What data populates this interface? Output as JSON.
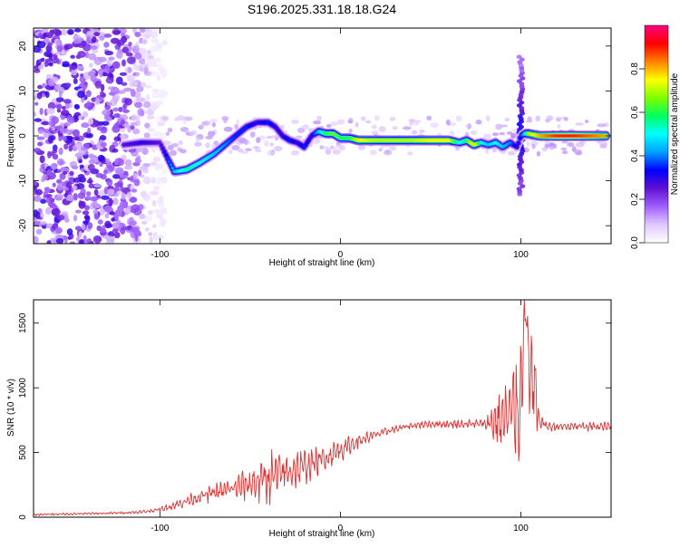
{
  "title": "S196.2025.331.18.18.G24",
  "colors": {
    "spectrogram_background": "#ffffff",
    "snr_line": "#e03030",
    "axis": "#000000"
  },
  "chart_data": [
    {
      "type": "heatmap",
      "title": "S196.2025.331.18.18.G24",
      "xlabel": "Height of straight line (km)",
      "ylabel": "Frequency (Hz)",
      "xlim": [
        -170,
        150
      ],
      "ylim": [
        -24,
        24
      ],
      "xticks": [
        -100,
        0,
        100
      ],
      "xtick_labels": [
        "-100",
        "0",
        "100"
      ],
      "yticks": [
        -20,
        -10,
        0,
        10,
        20
      ],
      "ytick_labels": [
        "-20",
        "-10",
        "0",
        "10",
        "20"
      ],
      "colorbar": {
        "label": "Normalized spectral amplitude",
        "range": [
          0,
          1
        ],
        "ticks": [
          0.0,
          0.2,
          0.4,
          0.6,
          0.8
        ],
        "tick_labels": [
          "0.0",
          "0.2",
          "0.4",
          "0.6",
          "0.8"
        ],
        "colormap": [
          "#ffffff",
          "#e0c8ff",
          "#a060ff",
          "#6010d0",
          "#0000ff",
          "#00a0ff",
          "#00ffff",
          "#00ff60",
          "#80ff00",
          "#ffff00",
          "#ff8000",
          "#ff0000",
          "#ff0080"
        ]
      },
      "noise_region_x": [
        -170,
        -97
      ],
      "ridge": {
        "x": [
          -120,
          -110,
          -100,
          -92,
          -85,
          -78,
          -70,
          -64,
          -58,
          -52,
          -46,
          -40,
          -36,
          -32,
          -28,
          -24,
          -20,
          -16,
          -12,
          -8,
          -4,
          0,
          5,
          10,
          20,
          30,
          40,
          50,
          60,
          66,
          70,
          74,
          78,
          82,
          86,
          90,
          94,
          98,
          100,
          102,
          104,
          110,
          120,
          130,
          140,
          148
        ],
        "frequency": [
          -2,
          -1.5,
          -1.5,
          -8,
          -7.5,
          -6,
          -4,
          -2,
          0,
          2,
          3,
          3,
          2,
          0,
          -1,
          -1.5,
          -2.5,
          0,
          1,
          0.5,
          0.5,
          -0.5,
          -0.5,
          -1,
          -1,
          -1,
          -1,
          -1,
          -1,
          -1.5,
          -1,
          -2,
          -1.5,
          -2,
          -1.5,
          -2.5,
          -1.5,
          -2.5,
          0,
          0.5,
          0.5,
          0,
          0,
          0,
          0,
          0
        ],
        "amplitude": [
          0.25,
          0.3,
          0.25,
          0.45,
          0.55,
          0.5,
          0.45,
          0.4,
          0.35,
          0.35,
          0.3,
          0.35,
          0.3,
          0.3,
          0.35,
          0.3,
          0.35,
          0.3,
          0.45,
          0.6,
          0.65,
          0.6,
          0.6,
          0.75,
          0.7,
          0.7,
          0.7,
          0.75,
          0.75,
          0.5,
          0.6,
          0.8,
          0.5,
          0.45,
          0.5,
          0.45,
          0.4,
          0.3,
          0.35,
          0.45,
          0.7,
          0.8,
          0.9,
          0.9,
          0.85,
          0.8
        ]
      },
      "spike_x": 100,
      "spike_frequency_range": [
        -13,
        18
      ]
    },
    {
      "type": "line",
      "xlabel": "Height of straight line (km)",
      "ylabel": "SNR (10 * v/v)",
      "xlim": [
        -170,
        150
      ],
      "ylim": [
        0,
        1680
      ],
      "xticks": [
        -100,
        0,
        100
      ],
      "xtick_labels": [
        "-100",
        "0",
        "100"
      ],
      "yticks": [
        0,
        500,
        1000,
        1500
      ],
      "ytick_labels": [
        "0",
        "500",
        "1000",
        "1500"
      ],
      "series": [
        {
          "name": "SNR",
          "x": [
            -170,
            -150,
            -130,
            -110,
            -100,
            -90,
            -80,
            -70,
            -60,
            -50,
            -40,
            -30,
            -20,
            -10,
            0,
            10,
            20,
            30,
            40,
            50,
            60,
            70,
            80,
            85,
            90,
            95,
            100,
            102,
            105,
            108,
            110,
            115,
            120,
            130,
            140,
            150
          ],
          "y": [
            20,
            25,
            30,
            40,
            60,
            100,
            150,
            190,
            220,
            260,
            300,
            350,
            390,
            450,
            520,
            590,
            640,
            680,
            710,
            720,
            720,
            720,
            720,
            740,
            760,
            800,
            900,
            1680,
            1100,
            900,
            750,
            700,
            700,
            700,
            700,
            700
          ],
          "ripple_amplitude": [
            10,
            10,
            10,
            15,
            20,
            40,
            60,
            80,
            100,
            150,
            250,
            180,
            150,
            120,
            100,
            60,
            40,
            30,
            30,
            30,
            35,
            40,
            50,
            200,
            300,
            400,
            600,
            300,
            450,
            500,
            60,
            40,
            40,
            40,
            40,
            40
          ]
        }
      ]
    }
  ]
}
